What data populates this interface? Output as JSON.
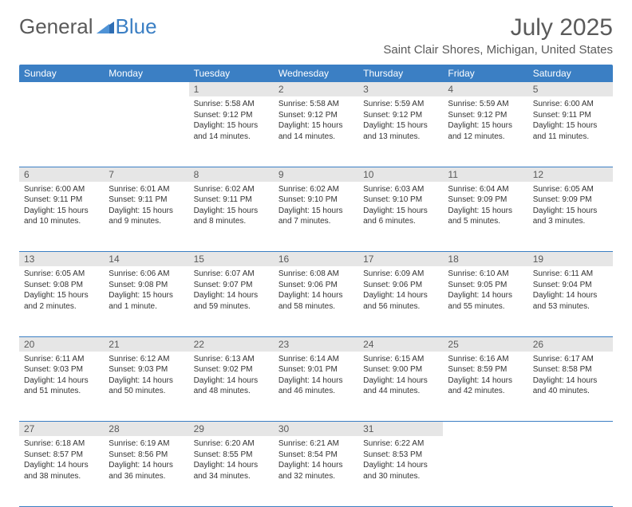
{
  "logo": {
    "text1": "General",
    "text2": "Blue"
  },
  "title": "July 2025",
  "location": "Saint Clair Shores, Michigan, United States",
  "colors": {
    "header_bg": "#3b7fc4",
    "header_text": "#ffffff",
    "daynum_bg": "#e6e6e6",
    "text": "#333333",
    "muted": "#5a5a5a",
    "rule": "#3b7fc4"
  },
  "dayHeaders": [
    "Sunday",
    "Monday",
    "Tuesday",
    "Wednesday",
    "Thursday",
    "Friday",
    "Saturday"
  ],
  "weeks": [
    [
      {
        "num": "",
        "sunrise": "",
        "sunset": "",
        "daylight": ""
      },
      {
        "num": "",
        "sunrise": "",
        "sunset": "",
        "daylight": ""
      },
      {
        "num": "1",
        "sunrise": "Sunrise: 5:58 AM",
        "sunset": "Sunset: 9:12 PM",
        "daylight": "Daylight: 15 hours and 14 minutes."
      },
      {
        "num": "2",
        "sunrise": "Sunrise: 5:58 AM",
        "sunset": "Sunset: 9:12 PM",
        "daylight": "Daylight: 15 hours and 14 minutes."
      },
      {
        "num": "3",
        "sunrise": "Sunrise: 5:59 AM",
        "sunset": "Sunset: 9:12 PM",
        "daylight": "Daylight: 15 hours and 13 minutes."
      },
      {
        "num": "4",
        "sunrise": "Sunrise: 5:59 AM",
        "sunset": "Sunset: 9:12 PM",
        "daylight": "Daylight: 15 hours and 12 minutes."
      },
      {
        "num": "5",
        "sunrise": "Sunrise: 6:00 AM",
        "sunset": "Sunset: 9:11 PM",
        "daylight": "Daylight: 15 hours and 11 minutes."
      }
    ],
    [
      {
        "num": "6",
        "sunrise": "Sunrise: 6:00 AM",
        "sunset": "Sunset: 9:11 PM",
        "daylight": "Daylight: 15 hours and 10 minutes."
      },
      {
        "num": "7",
        "sunrise": "Sunrise: 6:01 AM",
        "sunset": "Sunset: 9:11 PM",
        "daylight": "Daylight: 15 hours and 9 minutes."
      },
      {
        "num": "8",
        "sunrise": "Sunrise: 6:02 AM",
        "sunset": "Sunset: 9:11 PM",
        "daylight": "Daylight: 15 hours and 8 minutes."
      },
      {
        "num": "9",
        "sunrise": "Sunrise: 6:02 AM",
        "sunset": "Sunset: 9:10 PM",
        "daylight": "Daylight: 15 hours and 7 minutes."
      },
      {
        "num": "10",
        "sunrise": "Sunrise: 6:03 AM",
        "sunset": "Sunset: 9:10 PM",
        "daylight": "Daylight: 15 hours and 6 minutes."
      },
      {
        "num": "11",
        "sunrise": "Sunrise: 6:04 AM",
        "sunset": "Sunset: 9:09 PM",
        "daylight": "Daylight: 15 hours and 5 minutes."
      },
      {
        "num": "12",
        "sunrise": "Sunrise: 6:05 AM",
        "sunset": "Sunset: 9:09 PM",
        "daylight": "Daylight: 15 hours and 3 minutes."
      }
    ],
    [
      {
        "num": "13",
        "sunrise": "Sunrise: 6:05 AM",
        "sunset": "Sunset: 9:08 PM",
        "daylight": "Daylight: 15 hours and 2 minutes."
      },
      {
        "num": "14",
        "sunrise": "Sunrise: 6:06 AM",
        "sunset": "Sunset: 9:08 PM",
        "daylight": "Daylight: 15 hours and 1 minute."
      },
      {
        "num": "15",
        "sunrise": "Sunrise: 6:07 AM",
        "sunset": "Sunset: 9:07 PM",
        "daylight": "Daylight: 14 hours and 59 minutes."
      },
      {
        "num": "16",
        "sunrise": "Sunrise: 6:08 AM",
        "sunset": "Sunset: 9:06 PM",
        "daylight": "Daylight: 14 hours and 58 minutes."
      },
      {
        "num": "17",
        "sunrise": "Sunrise: 6:09 AM",
        "sunset": "Sunset: 9:06 PM",
        "daylight": "Daylight: 14 hours and 56 minutes."
      },
      {
        "num": "18",
        "sunrise": "Sunrise: 6:10 AM",
        "sunset": "Sunset: 9:05 PM",
        "daylight": "Daylight: 14 hours and 55 minutes."
      },
      {
        "num": "19",
        "sunrise": "Sunrise: 6:11 AM",
        "sunset": "Sunset: 9:04 PM",
        "daylight": "Daylight: 14 hours and 53 minutes."
      }
    ],
    [
      {
        "num": "20",
        "sunrise": "Sunrise: 6:11 AM",
        "sunset": "Sunset: 9:03 PM",
        "daylight": "Daylight: 14 hours and 51 minutes."
      },
      {
        "num": "21",
        "sunrise": "Sunrise: 6:12 AM",
        "sunset": "Sunset: 9:03 PM",
        "daylight": "Daylight: 14 hours and 50 minutes."
      },
      {
        "num": "22",
        "sunrise": "Sunrise: 6:13 AM",
        "sunset": "Sunset: 9:02 PM",
        "daylight": "Daylight: 14 hours and 48 minutes."
      },
      {
        "num": "23",
        "sunrise": "Sunrise: 6:14 AM",
        "sunset": "Sunset: 9:01 PM",
        "daylight": "Daylight: 14 hours and 46 minutes."
      },
      {
        "num": "24",
        "sunrise": "Sunrise: 6:15 AM",
        "sunset": "Sunset: 9:00 PM",
        "daylight": "Daylight: 14 hours and 44 minutes."
      },
      {
        "num": "25",
        "sunrise": "Sunrise: 6:16 AM",
        "sunset": "Sunset: 8:59 PM",
        "daylight": "Daylight: 14 hours and 42 minutes."
      },
      {
        "num": "26",
        "sunrise": "Sunrise: 6:17 AM",
        "sunset": "Sunset: 8:58 PM",
        "daylight": "Daylight: 14 hours and 40 minutes."
      }
    ],
    [
      {
        "num": "27",
        "sunrise": "Sunrise: 6:18 AM",
        "sunset": "Sunset: 8:57 PM",
        "daylight": "Daylight: 14 hours and 38 minutes."
      },
      {
        "num": "28",
        "sunrise": "Sunrise: 6:19 AM",
        "sunset": "Sunset: 8:56 PM",
        "daylight": "Daylight: 14 hours and 36 minutes."
      },
      {
        "num": "29",
        "sunrise": "Sunrise: 6:20 AM",
        "sunset": "Sunset: 8:55 PM",
        "daylight": "Daylight: 14 hours and 34 minutes."
      },
      {
        "num": "30",
        "sunrise": "Sunrise: 6:21 AM",
        "sunset": "Sunset: 8:54 PM",
        "daylight": "Daylight: 14 hours and 32 minutes."
      },
      {
        "num": "31",
        "sunrise": "Sunrise: 6:22 AM",
        "sunset": "Sunset: 8:53 PM",
        "daylight": "Daylight: 14 hours and 30 minutes."
      },
      {
        "num": "",
        "sunrise": "",
        "sunset": "",
        "daylight": ""
      },
      {
        "num": "",
        "sunrise": "",
        "sunset": "",
        "daylight": ""
      }
    ]
  ]
}
